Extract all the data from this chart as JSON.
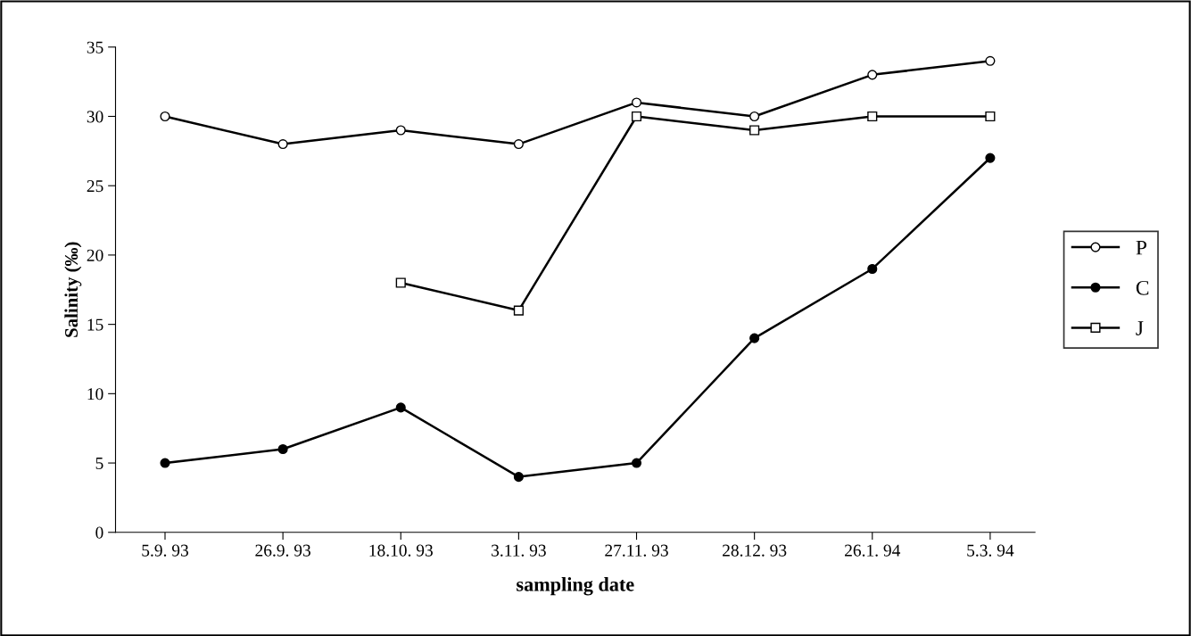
{
  "chart_data": {
    "type": "line",
    "xlabel": "sampling date",
    "ylabel": "Salinity (‰)",
    "categories": [
      "5.9. 93",
      "26.9. 93",
      "18.10. 93",
      "3.11. 93",
      "27.11. 93",
      "28.12. 93",
      "26.1. 94",
      "5.3. 94"
    ],
    "series": [
      {
        "name": "P",
        "color": "#000000",
        "marker": "circle",
        "values": [
          30,
          28,
          29,
          28,
          31,
          30,
          33,
          34
        ]
      },
      {
        "name": "C",
        "color": "#000000",
        "marker": "circle",
        "values": [
          5,
          6,
          9,
          4,
          5,
          14,
          19,
          27
        ]
      },
      {
        "name": "J",
        "color": "#000000",
        "marker": "square",
        "values": [
          null,
          null,
          18,
          16,
          30,
          29,
          30,
          30
        ]
      }
    ],
    "ylim": [
      0,
      35
    ],
    "yticks": [
      0,
      5,
      10,
      15,
      20,
      25,
      30,
      35
    ],
    "grid": false,
    "legend": "right",
    "line_style": "solid"
  }
}
